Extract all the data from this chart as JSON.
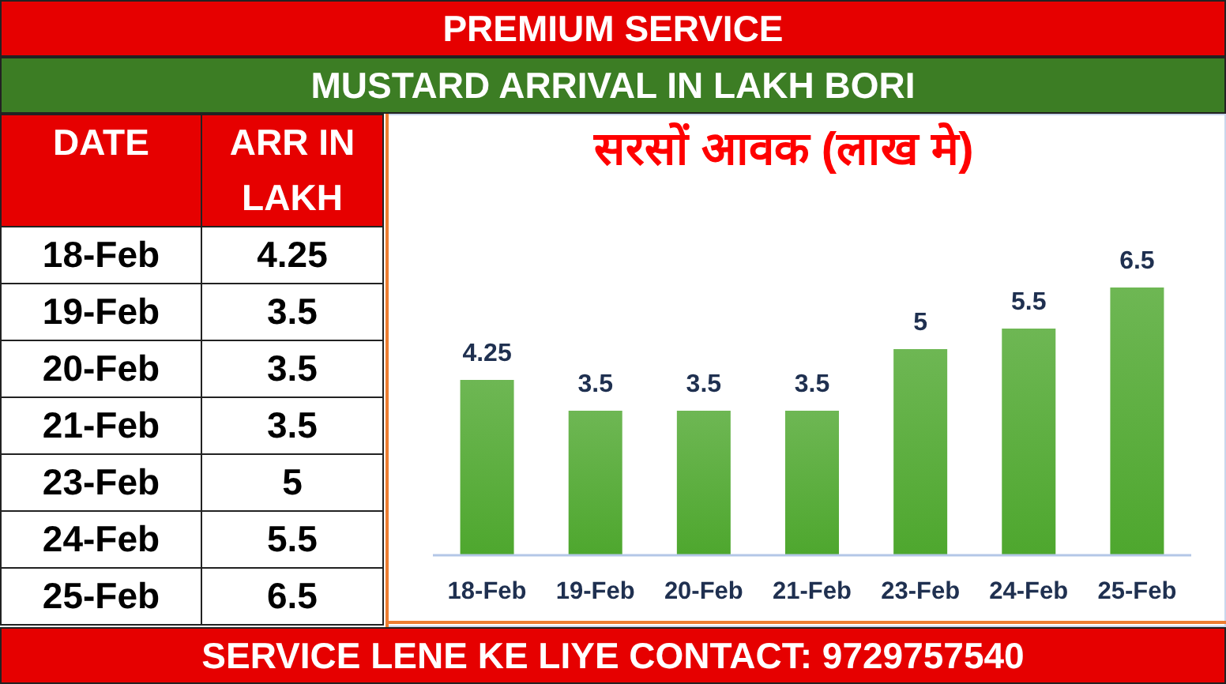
{
  "chart_data": [
    {
      "type": "other",
      "xlabel": "DATE",
      "ylabel": "ARR IN LAKH",
      "categories": [
        "18-Feb",
        "19-Feb",
        "20-Feb",
        "21-Feb",
        "23-Feb",
        "24-Feb",
        "25-Feb"
      ],
      "values": [
        4.25,
        3.5,
        3.5,
        3.5,
        5,
        5.5,
        6.5
      ],
      "data_labels": true
    },
    {
      "type": "bar",
      "title": "सरसों आवक (लाख मे)",
      "subtitle": "MUSTARD ARRIVAL IN LAKH BORI",
      "categories": [
        "18-Feb",
        "19-Feb",
        "20-Feb",
        "21-Feb",
        "23-Feb",
        "24-Feb",
        "25-Feb"
      ],
      "values": [
        4.25,
        3.5,
        3.5,
        3.5,
        5,
        5.5,
        6.5
      ],
      "color": "#4ea72e",
      "data_labels": true,
      "annotations": [
        "PREMIUM SERVICE",
        "SERVICE LENE KE LIYE CONTACT: 9729757540"
      ]
    }
  ]
}
